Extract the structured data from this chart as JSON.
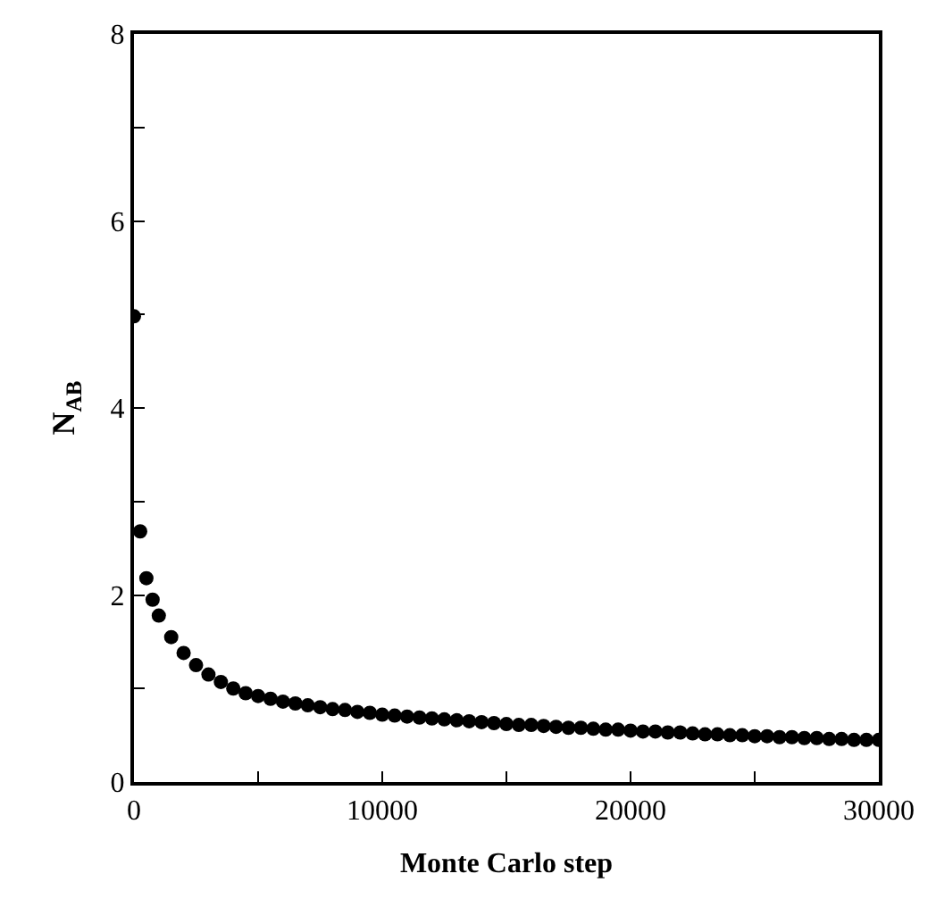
{
  "chart_data": {
    "type": "scatter",
    "xlabel": "Monte Carlo step",
    "ylabel": "N$_{AB}$",
    "x": [
      0,
      250,
      500,
      750,
      1000,
      1500,
      2000,
      2500,
      3000,
      3500,
      4000,
      4500,
      5000,
      5500,
      6000,
      6500,
      7000,
      7500,
      8000,
      8500,
      9000,
      9500,
      10000,
      10500,
      11000,
      11500,
      12000,
      12500,
      13000,
      13500,
      14000,
      14500,
      15000,
      15500,
      16000,
      16500,
      17000,
      17500,
      18000,
      18500,
      19000,
      19500,
      20000,
      20500,
      21000,
      21500,
      22000,
      22500,
      23000,
      23500,
      24000,
      24500,
      25000,
      25500,
      26000,
      26500,
      27000,
      27500,
      28000,
      28500,
      29000,
      29500,
      30000
    ],
    "series": [
      {
        "color": "#000000",
        "values": [
          4.98,
          2.68,
          2.18,
          1.95,
          1.78,
          1.55,
          1.38,
          1.25,
          1.15,
          1.07,
          1.0,
          0.95,
          0.92,
          0.89,
          0.86,
          0.84,
          0.82,
          0.8,
          0.78,
          0.77,
          0.75,
          0.74,
          0.72,
          0.71,
          0.7,
          0.69,
          0.68,
          0.67,
          0.66,
          0.65,
          0.64,
          0.63,
          0.62,
          0.61,
          0.61,
          0.6,
          0.59,
          0.58,
          0.58,
          0.57,
          0.56,
          0.56,
          0.55,
          0.54,
          0.54,
          0.53,
          0.53,
          0.52,
          0.51,
          0.51,
          0.5,
          0.5,
          0.49,
          0.49,
          0.48,
          0.48,
          0.47,
          0.47,
          0.46,
          0.46,
          0.45,
          0.45,
          0.45
        ]
      }
    ],
    "xlim": [
      0,
      30000
    ],
    "ylim": [
      0,
      8
    ],
    "xticks": [
      0,
      {
        "value": 5000,
        "label": null
      },
      10000,
      {
        "value": 15000,
        "label": null
      },
      20000,
      {
        "value": 25000,
        "label": null
      },
      30000
    ],
    "yticks": [
      0,
      {
        "value": 1,
        "label": null
      },
      2,
      {
        "value": 3,
        "label": null
      },
      4,
      {
        "value": 5,
        "label": null
      },
      6,
      {
        "value": 7,
        "label": null
      },
      8
    ],
    "marker": "circle"
  }
}
